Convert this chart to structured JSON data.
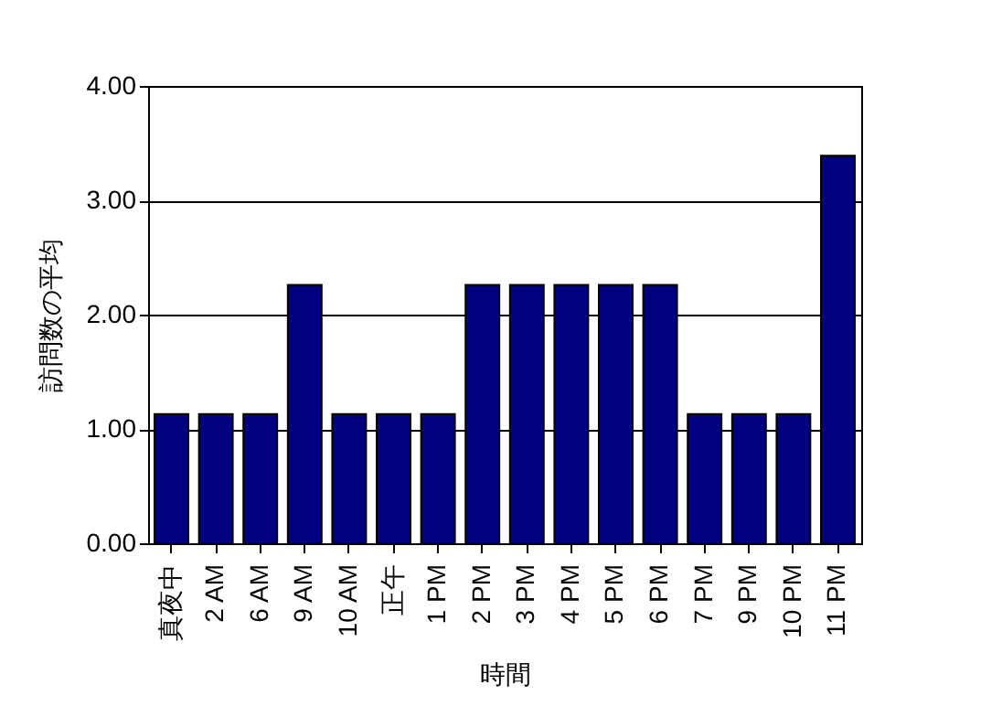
{
  "chart_data": {
    "type": "bar",
    "xlabel": "時間",
    "ylabel": "訪問数の平均",
    "categories": [
      "真夜中",
      "2 AM",
      "6 AM",
      "9 AM",
      "10 AM",
      "正午",
      "1 PM",
      "2 PM",
      "3 PM",
      "4 PM",
      "5 PM",
      "6 PM",
      "7 PM",
      "9 PM",
      "10 PM",
      "11 PM"
    ],
    "values": [
      1.13,
      1.13,
      1.13,
      2.26,
      1.13,
      1.13,
      1.13,
      2.26,
      2.26,
      2.26,
      2.26,
      2.26,
      1.13,
      1.13,
      1.13,
      3.39
    ],
    "color": "#000080",
    "ylim": [
      0,
      4
    ],
    "yticks": [
      {
        "value": 0,
        "label": "0.00"
      },
      {
        "value": 1,
        "label": "1.00"
      },
      {
        "value": 2,
        "label": "2.00"
      },
      {
        "value": 3,
        "label": "3.00"
      },
      {
        "value": 4,
        "label": "4.00"
      }
    ],
    "grid": "y"
  }
}
